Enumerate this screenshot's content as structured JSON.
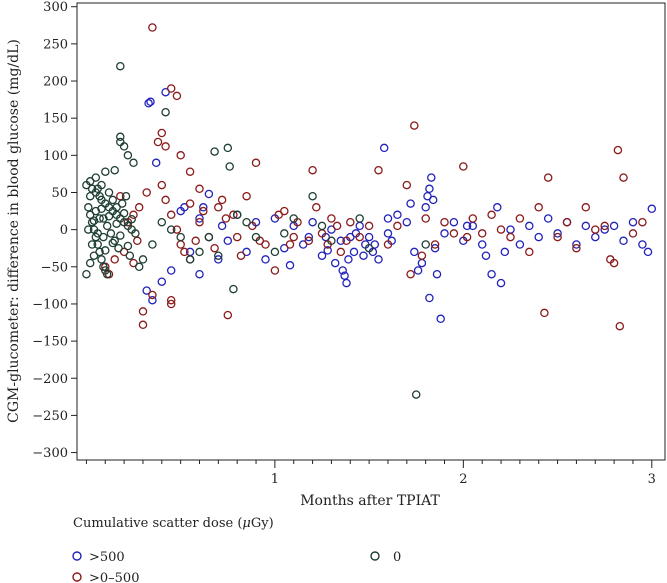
{
  "chart_data": {
    "type": "scatter",
    "title": "",
    "xlabel": "Months after TPIAT",
    "ylabel": "CGM-glucometer: difference in blood glucose (mg/dL)",
    "xlim": [
      -0.05,
      3.07
    ],
    "ylim": [
      -310,
      305
    ],
    "x_ticks": [
      1,
      2,
      3
    ],
    "y_ticks": [
      300,
      250,
      200,
      150,
      100,
      50,
      0,
      -50,
      -100,
      -150,
      -200,
      -250,
      -300
    ],
    "grid": false,
    "legend": {
      "title_prefix": "Cumulative scatter dose (",
      "title_mu": "μ",
      "title_suffix": "Gy)",
      "placement": "bottom",
      "entries": [
        {
          "label": ">500",
          "color": "#2222bb"
        },
        {
          "label": ">0–500",
          "color": "#8b1a1a"
        },
        {
          "label": "0",
          "color": "#1f3f33"
        }
      ]
    },
    "series": [
      {
        "name": ">500",
        "color": "#2222bb",
        "points": [
          [
            0.32,
            -82
          ],
          [
            0.35,
            -95
          ],
          [
            0.4,
            -70
          ],
          [
            0.33,
            170
          ],
          [
            0.34,
            172
          ],
          [
            0.42,
            185
          ],
          [
            0.37,
            90
          ],
          [
            0.45,
            -55
          ],
          [
            0.6,
            -60
          ],
          [
            0.5,
            25
          ],
          [
            0.55,
            -30
          ],
          [
            0.6,
            15
          ],
          [
            0.62,
            30
          ],
          [
            0.65,
            48
          ],
          [
            0.7,
            -40
          ],
          [
            0.72,
            5
          ],
          [
            0.75,
            -15
          ],
          [
            0.8,
            20
          ],
          [
            0.85,
            -30
          ],
          [
            0.9,
            10
          ],
          [
            0.95,
            -40
          ],
          [
            1.0,
            15
          ],
          [
            1.05,
            -25
          ],
          [
            1.08,
            -48
          ],
          [
            1.1,
            5
          ],
          [
            1.15,
            -20
          ],
          [
            1.2,
            10
          ],
          [
            1.25,
            -35
          ],
          [
            1.28,
            -28
          ],
          [
            1.3,
            0
          ],
          [
            1.32,
            -45
          ],
          [
            1.35,
            -15
          ],
          [
            1.36,
            -55
          ],
          [
            1.37,
            -62
          ],
          [
            1.38,
            -72
          ],
          [
            1.39,
            -40
          ],
          [
            1.4,
            -10
          ],
          [
            1.42,
            -30
          ],
          [
            1.45,
            5
          ],
          [
            1.48,
            -20
          ],
          [
            1.5,
            -10
          ],
          [
            1.52,
            -30
          ],
          [
            1.55,
            -40
          ],
          [
            1.58,
            110
          ],
          [
            1.6,
            -5
          ],
          [
            1.62,
            -15
          ],
          [
            1.65,
            20
          ],
          [
            1.7,
            10
          ],
          [
            1.72,
            35
          ],
          [
            1.74,
            -30
          ],
          [
            1.76,
            -55
          ],
          [
            1.78,
            -45
          ],
          [
            1.8,
            30
          ],
          [
            1.81,
            45
          ],
          [
            1.82,
            55
          ],
          [
            1.83,
            70
          ],
          [
            1.84,
            40
          ],
          [
            1.85,
            -25
          ],
          [
            1.86,
            -60
          ],
          [
            1.88,
            -120
          ],
          [
            1.82,
            -92
          ],
          [
            1.9,
            -5
          ],
          [
            1.95,
            10
          ],
          [
            2.0,
            -15
          ],
          [
            2.05,
            5
          ],
          [
            2.1,
            -20
          ],
          [
            2.15,
            -60
          ],
          [
            2.2,
            -72
          ],
          [
            2.22,
            -30
          ],
          [
            2.25,
            0
          ],
          [
            2.3,
            -20
          ],
          [
            2.35,
            5
          ],
          [
            2.4,
            -10
          ],
          [
            2.45,
            15
          ],
          [
            2.5,
            -5
          ],
          [
            2.55,
            10
          ],
          [
            2.6,
            -20
          ],
          [
            2.65,
            5
          ],
          [
            2.7,
            -10
          ],
          [
            2.75,
            0
          ],
          [
            2.8,
            5
          ],
          [
            2.85,
            -15
          ],
          [
            2.9,
            10
          ],
          [
            2.95,
            -20
          ],
          [
            3.0,
            28
          ],
          [
            2.98,
            -30
          ],
          [
            1.18,
            -10
          ],
          [
            1.6,
            15
          ],
          [
            1.43,
            -5
          ],
          [
            1.27,
            -10
          ],
          [
            1.47,
            -35
          ],
          [
            1.53,
            -20
          ],
          [
            2.12,
            -35
          ],
          [
            2.18,
            30
          ],
          [
            2.02,
            5
          ],
          [
            0.52,
            30
          ]
        ]
      },
      {
        "name": ">0–500",
        "color": "#8b1a1a",
        "points": [
          [
            0.35,
            272
          ],
          [
            0.38,
            118
          ],
          [
            0.4,
            130
          ],
          [
            0.42,
            112
          ],
          [
            0.45,
            190
          ],
          [
            0.48,
            180
          ],
          [
            0.5,
            100
          ],
          [
            0.55,
            78
          ],
          [
            0.6,
            55
          ],
          [
            0.4,
            60
          ],
          [
            0.42,
            40
          ],
          [
            0.45,
            20
          ],
          [
            0.48,
            0
          ],
          [
            0.5,
            -20
          ],
          [
            0.52,
            -30
          ],
          [
            0.55,
            -40
          ],
          [
            0.3,
            -110
          ],
          [
            0.3,
            -128
          ],
          [
            0.35,
            -88
          ],
          [
            0.45,
            -95
          ],
          [
            0.45,
            -100
          ],
          [
            0.25,
            -45
          ],
          [
            0.28,
            30
          ],
          [
            0.32,
            50
          ],
          [
            0.6,
            10
          ],
          [
            0.65,
            -10
          ],
          [
            0.7,
            30
          ],
          [
            0.72,
            40
          ],
          [
            0.75,
            -115
          ],
          [
            0.78,
            20
          ],
          [
            0.8,
            -10
          ],
          [
            0.85,
            45
          ],
          [
            0.9,
            90
          ],
          [
            0.95,
            -20
          ],
          [
            1.0,
            -55
          ],
          [
            1.05,
            25
          ],
          [
            1.1,
            -10
          ],
          [
            1.2,
            80
          ],
          [
            1.25,
            -5
          ],
          [
            1.3,
            15
          ],
          [
            1.35,
            -30
          ],
          [
            1.4,
            10
          ],
          [
            1.45,
            -10
          ],
          [
            1.5,
            5
          ],
          [
            1.55,
            80
          ],
          [
            1.6,
            -20
          ],
          [
            1.65,
            5
          ],
          [
            1.7,
            60
          ],
          [
            1.72,
            -60
          ],
          [
            1.74,
            140
          ],
          [
            1.78,
            -35
          ],
          [
            1.8,
            15
          ],
          [
            1.85,
            -20
          ],
          [
            1.9,
            10
          ],
          [
            1.95,
            -5
          ],
          [
            2.0,
            85
          ],
          [
            2.02,
            -10
          ],
          [
            2.05,
            15
          ],
          [
            2.1,
            -5
          ],
          [
            2.15,
            20
          ],
          [
            2.2,
            0
          ],
          [
            2.25,
            -10
          ],
          [
            2.3,
            15
          ],
          [
            2.35,
            -30
          ],
          [
            2.4,
            30
          ],
          [
            2.43,
            -112
          ],
          [
            2.45,
            70
          ],
          [
            2.5,
            -10
          ],
          [
            2.55,
            10
          ],
          [
            2.6,
            -25
          ],
          [
            2.65,
            30
          ],
          [
            2.7,
            0
          ],
          [
            2.75,
            5
          ],
          [
            2.78,
            -40
          ],
          [
            2.8,
            -45
          ],
          [
            2.82,
            107
          ],
          [
            2.83,
            -130
          ],
          [
            2.85,
            70
          ],
          [
            2.9,
            -5
          ],
          [
            2.95,
            10
          ],
          [
            0.1,
            -50
          ],
          [
            0.15,
            -40
          ],
          [
            0.2,
            -30
          ],
          [
            0.22,
            10
          ],
          [
            0.25,
            20
          ],
          [
            0.12,
            -60
          ],
          [
            0.18,
            45
          ],
          [
            0.27,
            -15
          ],
          [
            0.55,
            35
          ],
          [
            0.58,
            -15
          ],
          [
            0.62,
            25
          ],
          [
            0.68,
            -25
          ],
          [
            0.74,
            15
          ],
          [
            0.82,
            -35
          ],
          [
            0.88,
            5
          ],
          [
            0.92,
            -15
          ],
          [
            1.02,
            20
          ],
          [
            1.08,
            -20
          ],
          [
            1.12,
            10
          ],
          [
            1.18,
            -15
          ],
          [
            1.22,
            30
          ],
          [
            1.28,
            -20
          ],
          [
            1.33,
            5
          ],
          [
            1.38,
            -15
          ]
        ]
      },
      {
        "name": "0",
        "color": "#1f3f33",
        "points": [
          [
            0.18,
            220
          ],
          [
            0.18,
            125
          ],
          [
            0.18,
            118
          ],
          [
            0.2,
            112
          ],
          [
            0.22,
            100
          ],
          [
            0.25,
            90
          ],
          [
            0.15,
            80
          ],
          [
            0.1,
            78
          ],
          [
            0.05,
            70
          ],
          [
            0.02,
            65
          ],
          [
            0.0,
            60
          ],
          [
            0.03,
            55
          ],
          [
            0.05,
            50
          ],
          [
            0.07,
            45
          ],
          [
            0.08,
            40
          ],
          [
            0.1,
            35
          ],
          [
            0.12,
            30
          ],
          [
            0.14,
            25
          ],
          [
            0.16,
            20
          ],
          [
            0.18,
            15
          ],
          [
            0.2,
            10
          ],
          [
            0.22,
            5
          ],
          [
            0.24,
            0
          ],
          [
            0.26,
            -5
          ],
          [
            0.01,
            30
          ],
          [
            0.02,
            20
          ],
          [
            0.03,
            10
          ],
          [
            0.04,
            0
          ],
          [
            0.05,
            -10
          ],
          [
            0.06,
            -20
          ],
          [
            0.07,
            -30
          ],
          [
            0.08,
            -40
          ],
          [
            0.09,
            -50
          ],
          [
            0.1,
            -55
          ],
          [
            0.11,
            -60
          ],
          [
            0.0,
            -60
          ],
          [
            0.02,
            -45
          ],
          [
            0.04,
            -35
          ],
          [
            0.06,
            55
          ],
          [
            0.08,
            60
          ],
          [
            0.09,
            15
          ],
          [
            0.11,
            5
          ],
          [
            0.13,
            -5
          ],
          [
            0.15,
            -15
          ],
          [
            0.17,
            -25
          ],
          [
            0.19,
            35
          ],
          [
            0.21,
            45
          ],
          [
            0.23,
            -35
          ],
          [
            0.12,
            50
          ],
          [
            0.14,
            40
          ],
          [
            0.16,
            30
          ],
          [
            0.01,
            0
          ],
          [
            0.03,
            -20
          ],
          [
            0.05,
            25
          ],
          [
            0.07,
            15
          ],
          [
            0.09,
            -10
          ],
          [
            0.28,
            -50
          ],
          [
            0.3,
            -40
          ],
          [
            0.35,
            -20
          ],
          [
            0.4,
            10
          ],
          [
            0.45,
            0
          ],
          [
            0.5,
            -10
          ],
          [
            0.55,
            -40
          ],
          [
            0.6,
            -30
          ],
          [
            0.65,
            -10
          ],
          [
            0.68,
            105
          ],
          [
            0.7,
            -35
          ],
          [
            0.75,
            110
          ],
          [
            0.76,
            85
          ],
          [
            0.78,
            -80
          ],
          [
            0.8,
            20
          ],
          [
            0.85,
            10
          ],
          [
            0.9,
            -10
          ],
          [
            1.0,
            -30
          ],
          [
            1.05,
            -5
          ],
          [
            1.1,
            15
          ],
          [
            1.2,
            45
          ],
          [
            1.25,
            5
          ],
          [
            1.3,
            -15
          ],
          [
            1.45,
            15
          ],
          [
            1.5,
            -25
          ],
          [
            1.75,
            -222
          ],
          [
            1.8,
            -20
          ],
          [
            0.42,
            158
          ],
          [
            0.02,
            45
          ],
          [
            0.04,
            12
          ],
          [
            0.06,
            -5
          ],
          [
            0.08,
            28
          ],
          [
            0.1,
            -28
          ],
          [
            0.12,
            18
          ],
          [
            0.14,
            -18
          ],
          [
            0.16,
            8
          ],
          [
            0.18,
            -8
          ],
          [
            0.2,
            22
          ],
          [
            0.22,
            -22
          ],
          [
            0.24,
            14
          ]
        ]
      }
    ]
  }
}
